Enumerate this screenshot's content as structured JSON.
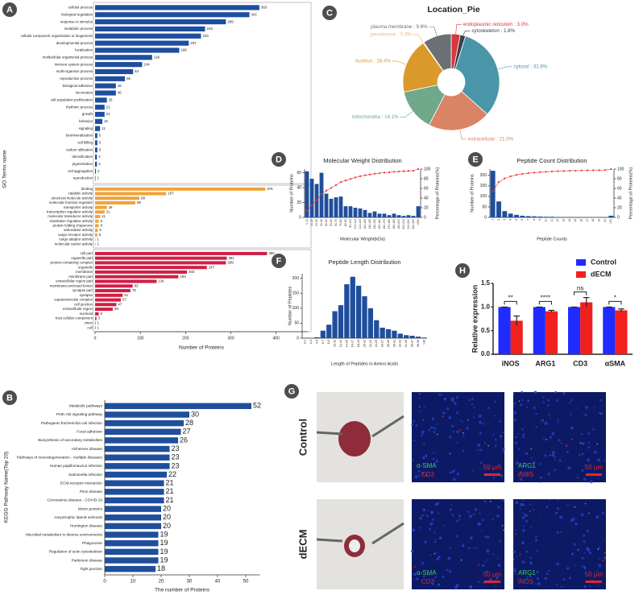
{
  "chart_data": [
    {
      "panel": "A",
      "type": "bar",
      "horizontal": true,
      "xlabel": "Number of Proteins",
      "ylabel": "GO Terms name",
      "xlim": [
        0,
        470
      ],
      "xticks": [
        0,
        100,
        200,
        300,
        400
      ],
      "groups": [
        {
          "color": "#1e4e9e",
          "categories": [
            "cellular process",
            "biological regulation",
            "response to stimulus",
            "metabolic process",
            "cellular component organization or biogenesis",
            "developmental process",
            "localization",
            "multicellular organismal process",
            "immune system process",
            "multi-organism process",
            "reproductive process",
            "biological adhesion",
            "locomotion",
            "cell population proliferation",
            "rhythmic process",
            "growth",
            "behavior",
            "signaling",
            "biomineralization",
            "cell killing",
            "carbon utilization",
            "detoxification",
            "pigmentation",
            "cell aggregation",
            "reproduction"
          ],
          "values": [
            363,
            341,
            289,
            243,
            234,
            207,
            186,
            126,
            104,
            84,
            66,
            46,
            46,
            26,
            21,
            21,
            16,
            11,
            5,
            5,
            5,
            4,
            4,
            2,
            1
          ]
        },
        {
          "color": "#f0a23a",
          "categories": [
            "binding",
            "catalytic activity",
            "structural molecule activity",
            "molecular function regulator",
            "transporter activity",
            "transcription regulator activity",
            "molecular transducer activity",
            "translation regulator activity",
            "protein folding chaperone",
            "antioxidant activity",
            "cargo receptor activity",
            "cargo adaptor activity",
            "molecular carrier activity"
          ],
          "values": [
            376,
            157,
            98,
            89,
            26,
            21,
            11,
            8,
            8,
            6,
            5,
            1,
            1
          ]
        },
        {
          "color": "#cf1f45",
          "categories": [
            "cell part",
            "organelle part",
            "protein-containing complex",
            "organelle",
            "membrane",
            "membrane part",
            "extracellular region part",
            "membrane-enclosed lumen",
            "synapse part",
            "synapse",
            "supramolecular complex",
            "cell junction",
            "extracellular region",
            "nucleoid",
            "host cellular component",
            "virion",
            "cell"
          ],
          "values": [
            380,
            291,
            289,
            247,
            203,
            184,
            136,
            83,
            78,
            61,
            57,
            47,
            39,
            8,
            3,
            1,
            1
          ]
        }
      ]
    },
    {
      "panel": "B",
      "type": "bar",
      "horizontal": true,
      "xlabel": "The number of Proteins",
      "ylabel": "KEGG Pathway Name(Top 20)",
      "xlim": [
        0,
        55
      ],
      "xticks": [
        0,
        10,
        20,
        30,
        40,
        50
      ],
      "color": "#1f4e9c",
      "categories": [
        "Metabolic pathways",
        "PI3K-Akt signaling pathway",
        "Pathogenic Escherichia coli infection",
        "Focal adhesion",
        "Biosynthesis of secondary metabolites",
        "Alzheimer disease",
        "Pathways of neurodegeneration - multiple diseases",
        "Human papillomavirus infection",
        "Salmonella infection",
        "ECM-receptor interaction",
        "Prion disease",
        "Coronavirus disease - COVID-19",
        "Motor proteins",
        "Amyotrophic lateral sclerosis",
        "Huntington disease",
        "Microbial metabolism in diverse environments",
        "Phagosome",
        "Regulation of actin cytoskeleton",
        "Parkinson disease",
        "Tight junction"
      ],
      "values": [
        52,
        30,
        28,
        27,
        26,
        23,
        23,
        23,
        22,
        21,
        21,
        21,
        20,
        20,
        20,
        19,
        19,
        19,
        19,
        18
      ]
    },
    {
      "panel": "C",
      "type": "pie",
      "donut": true,
      "title": "Location_Pie",
      "labels": [
        "endoplasmic reticulum : 3.0%",
        "cytoskeleton : 1.8%",
        "cytosol : 31.8%",
        "extracellular : 21.0%",
        "mitochondria : 14.1%",
        "nucleus : 18.4%",
        "peroxisome : 0.3%",
        "plasma membrane : 9.6%"
      ],
      "values": [
        3.0,
        1.8,
        31.8,
        21.0,
        14.1,
        18.4,
        0.3,
        9.6
      ],
      "colors": [
        "#d9363e",
        "#3a3f4a",
        "#4a96a8",
        "#d98465",
        "#6fa88a",
        "#d99a2b",
        "#e8b86d",
        "#6c6f74"
      ]
    },
    {
      "panel": "D",
      "type": "bar",
      "title": "Molecular Weight Distribution",
      "xlabel": "Molecular Weight(kDa)",
      "ylabel": "Number of Proteins",
      "y2label": "Percentage of Proteins(%)",
      "xtick_rotation": 90,
      "ylim": [
        0,
        65
      ],
      "yticks": [
        0,
        20,
        40,
        60
      ],
      "y2lim": [
        0,
        100
      ],
      "y2ticks": [
        0,
        20,
        40,
        60,
        80,
        100
      ],
      "categories": [
        "0-10",
        "10-20",
        "20-30",
        "30-40",
        "40-50",
        "50-60",
        "60-70",
        "70-80",
        "80-90",
        "90-100",
        "100-110",
        "110-120",
        "120-130",
        "130-140",
        "140-150",
        "150-160",
        "160-170",
        "170-180",
        "180-190",
        "190-200",
        "200-210",
        "210-220",
        "220-230",
        ">230"
      ],
      "series": [
        {
          "type": "bar",
          "color": "#1f4e9c",
          "values": [
            62,
            52,
            45,
            60,
            32,
            25,
            27,
            28,
            15,
            15,
            13,
            12,
            10,
            6,
            8,
            5,
            5,
            3,
            5,
            3,
            2,
            3,
            2,
            15
          ]
        },
        {
          "type": "line",
          "axis": "y2",
          "color": "#e8322f",
          "values": [
            13.7,
            25.2,
            35.1,
            48.3,
            55.4,
            60.9,
            66.9,
            73.1,
            76.4,
            79.7,
            82.6,
            85.2,
            87.4,
            88.7,
            90.5,
            91.6,
            92.7,
            93.4,
            94.5,
            95.1,
            95.6,
            96.2,
            96.7,
            100
          ]
        }
      ]
    },
    {
      "panel": "E",
      "type": "bar",
      "title": "Peptide Count Distribution",
      "xlabel": "Peptide Counts",
      "ylabel": "Number of Proteins",
      "y2label": "Percentage of Proteins(%)",
      "xtick_rotation": 90,
      "ylim": [
        0,
        230
      ],
      "yticks": [
        0,
        50,
        100,
        150,
        200
      ],
      "y2lim": [
        0,
        100
      ],
      "y2ticks": [
        0,
        20,
        40,
        60,
        80,
        100
      ],
      "categories": [
        "1",
        "2",
        "3",
        "4",
        "5",
        "6",
        "7",
        "8",
        "9",
        "10",
        "11",
        "12",
        "13",
        "14",
        "15",
        "16",
        "17",
        "18",
        "19",
        "20",
        ">20"
      ],
      "series": [
        {
          "type": "bar",
          "color": "#1f4e9c",
          "values": [
            222,
            76,
            30,
            18,
            12,
            8,
            6,
            5,
            4,
            3,
            3,
            2,
            2,
            2,
            1,
            1,
            1,
            1,
            1,
            1,
            8
          ]
        },
        {
          "type": "line",
          "axis": "y2",
          "color": "#e8322f",
          "values": [
            54.5,
            73.2,
            80.6,
            85.0,
            88.0,
            89.9,
            91.4,
            92.6,
            93.6,
            94.3,
            95.1,
            95.6,
            96.1,
            96.6,
            96.8,
            97.1,
            97.3,
            97.5,
            97.8,
            98.0,
            100
          ]
        }
      ]
    },
    {
      "panel": "F",
      "type": "bar",
      "title": "Peptide Length Distribution",
      "xlabel": "Length of Peptides in Amino Acids",
      "ylabel": "Number of Peptides",
      "xtick_rotation": 90,
      "ylim": [
        0,
        215
      ],
      "yticks": [
        0,
        50,
        100,
        150,
        200
      ],
      "categories": [
        "0-1",
        "2-3",
        "4-5",
        "6-7",
        "8-9",
        "10-11",
        "12-13",
        "14-15",
        "16-17",
        "18-19",
        "20-21",
        "22-23",
        "24-25",
        "26-27",
        "28-29",
        "30-31",
        "32-33",
        "34-35",
        "36-37",
        "38-39",
        ">39"
      ],
      "series": [
        {
          "type": "bar",
          "color": "#1f4e9c",
          "values": [
            0,
            0,
            3,
            25,
            45,
            90,
            110,
            180,
            205,
            175,
            140,
            100,
            60,
            35,
            30,
            25,
            15,
            10,
            8,
            5,
            2
          ]
        }
      ]
    },
    {
      "panel": "H",
      "type": "bar",
      "ylabel": "Relative expression",
      "legend": "upper right",
      "ylim": [
        0,
        1.5
      ],
      "yticks": [
        {
          "value": 0,
          "label": "0.0"
        },
        0.5,
        {
          "value": 1,
          "label": "1.0"
        },
        1.5
      ],
      "categories": [
        "iNOS",
        "ARG1",
        "CD3",
        "αSMA"
      ],
      "significance": [
        "**",
        "****",
        "ns",
        "*"
      ],
      "series": [
        {
          "name": "Control",
          "type": "bar",
          "color": "#1f2bff",
          "values": [
            1.0,
            1.0,
            1.0,
            1.0
          ],
          "errors": [
            0.0,
            0.0,
            0.0,
            0.0
          ]
        },
        {
          "name": "dECM",
          "type": "bar",
          "color": "#f0201e",
          "values": [
            0.71,
            0.91,
            1.1,
            0.93
          ],
          "errors": [
            0.1,
            0.02,
            0.1,
            0.03
          ]
        }
      ]
    }
  ],
  "image_panel": {
    "panel": "G",
    "row_labels": [
      "Control",
      "dECM"
    ],
    "stains": [
      [
        "α-SMA",
        "CD3"
      ],
      [
        "ARG1",
        "iNOS"
      ]
    ],
    "scale_bar": "50 μm"
  }
}
